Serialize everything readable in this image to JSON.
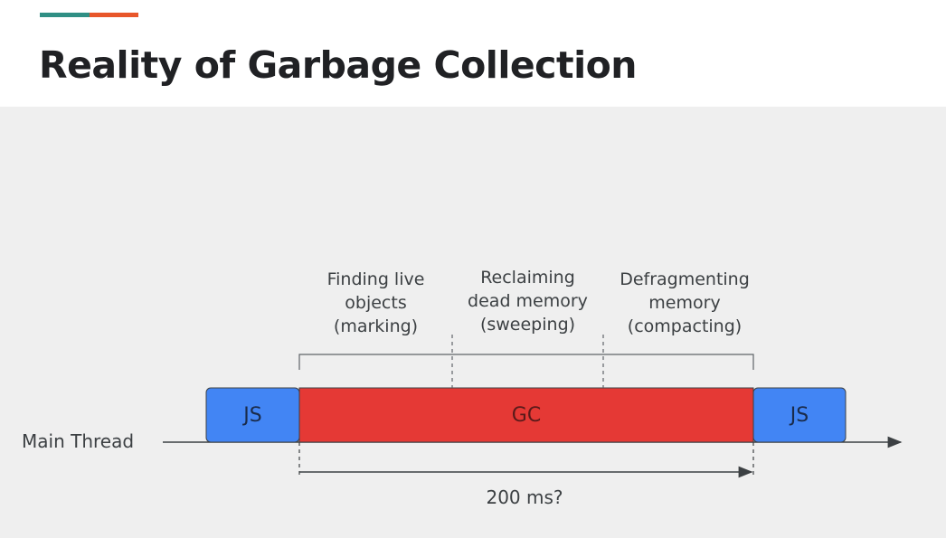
{
  "slide": {
    "title": "Reality of Garbage Collection",
    "accent_colors": [
      "#2f8f84",
      "#e8562a"
    ]
  },
  "diagram": {
    "thread_label": "Main Thread",
    "blocks": [
      {
        "label": "JS",
        "color": "#4285f4"
      },
      {
        "label": "GC",
        "color": "#e53935"
      },
      {
        "label": "JS",
        "color": "#4285f4"
      }
    ],
    "phases": [
      {
        "label": "Finding live\nobjects\n(marking)"
      },
      {
        "label": "Reclaiming\ndead memory\n(sweeping)"
      },
      {
        "label": "Defragmenting\nmemory\n(compacting)"
      }
    ],
    "duration_label": "200 ms?"
  }
}
